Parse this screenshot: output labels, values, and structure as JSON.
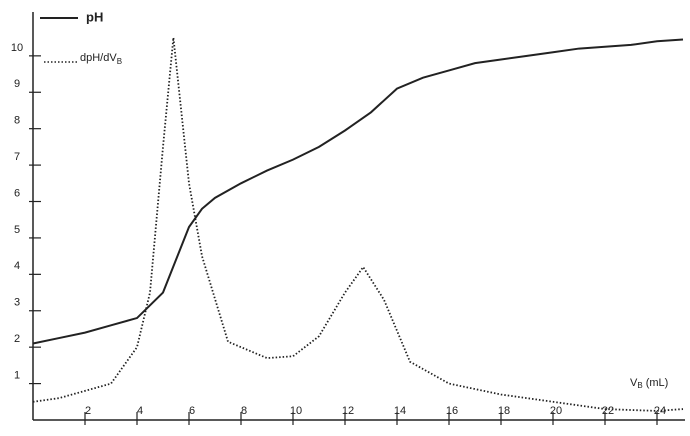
{
  "chart_data": {
    "type": "line",
    "x_label": "V",
    "x_label_sub": "B",
    "x_label_unit": "(mL)",
    "xlim": [
      0,
      25
    ],
    "ylim": [
      0,
      10.6
    ],
    "xticks": [
      2,
      4,
      6,
      8,
      10,
      12,
      14,
      16,
      18,
      20,
      22,
      24
    ],
    "yticks": [
      1,
      2,
      3,
      4,
      5,
      6,
      7,
      8,
      9,
      10
    ],
    "series": [
      {
        "name": "pH",
        "color": "#222222",
        "style": "solid",
        "x": [
          0,
          1,
          2,
          3,
          4,
          4.5,
          5,
          5.5,
          6,
          6.5,
          7,
          8,
          9,
          10,
          11,
          12,
          13,
          14,
          15,
          16,
          17,
          18,
          19,
          20,
          21,
          22,
          23,
          24,
          25
        ],
        "values": [
          2.1,
          2.25,
          2.4,
          2.6,
          2.8,
          3.15,
          3.5,
          4.4,
          5.3,
          5.8,
          6.1,
          6.5,
          6.85,
          7.15,
          7.5,
          7.95,
          8.45,
          9.1,
          9.4,
          9.6,
          9.8,
          9.9,
          10.0,
          10.1,
          10.2,
          10.25,
          10.3,
          10.4,
          10.45
        ]
      },
      {
        "name": "dpH/dV",
        "name_sub": "B",
        "color": "#222222",
        "style": "dotted",
        "x": [
          0,
          1,
          2,
          3,
          4,
          4.5,
          5,
          5.4,
          6,
          6.5,
          7.5,
          9,
          10,
          11,
          12,
          12.7,
          13.5,
          14.5,
          16,
          18,
          20,
          22,
          24,
          25
        ],
        "values": [
          0.5,
          0.6,
          0.8,
          1.0,
          2.0,
          3.5,
          7.5,
          10.5,
          6.5,
          4.5,
          2.15,
          1.7,
          1.75,
          2.3,
          3.5,
          4.2,
          3.3,
          1.6,
          1.0,
          0.7,
          0.5,
          0.3,
          0.25,
          0.3
        ]
      }
    ]
  }
}
